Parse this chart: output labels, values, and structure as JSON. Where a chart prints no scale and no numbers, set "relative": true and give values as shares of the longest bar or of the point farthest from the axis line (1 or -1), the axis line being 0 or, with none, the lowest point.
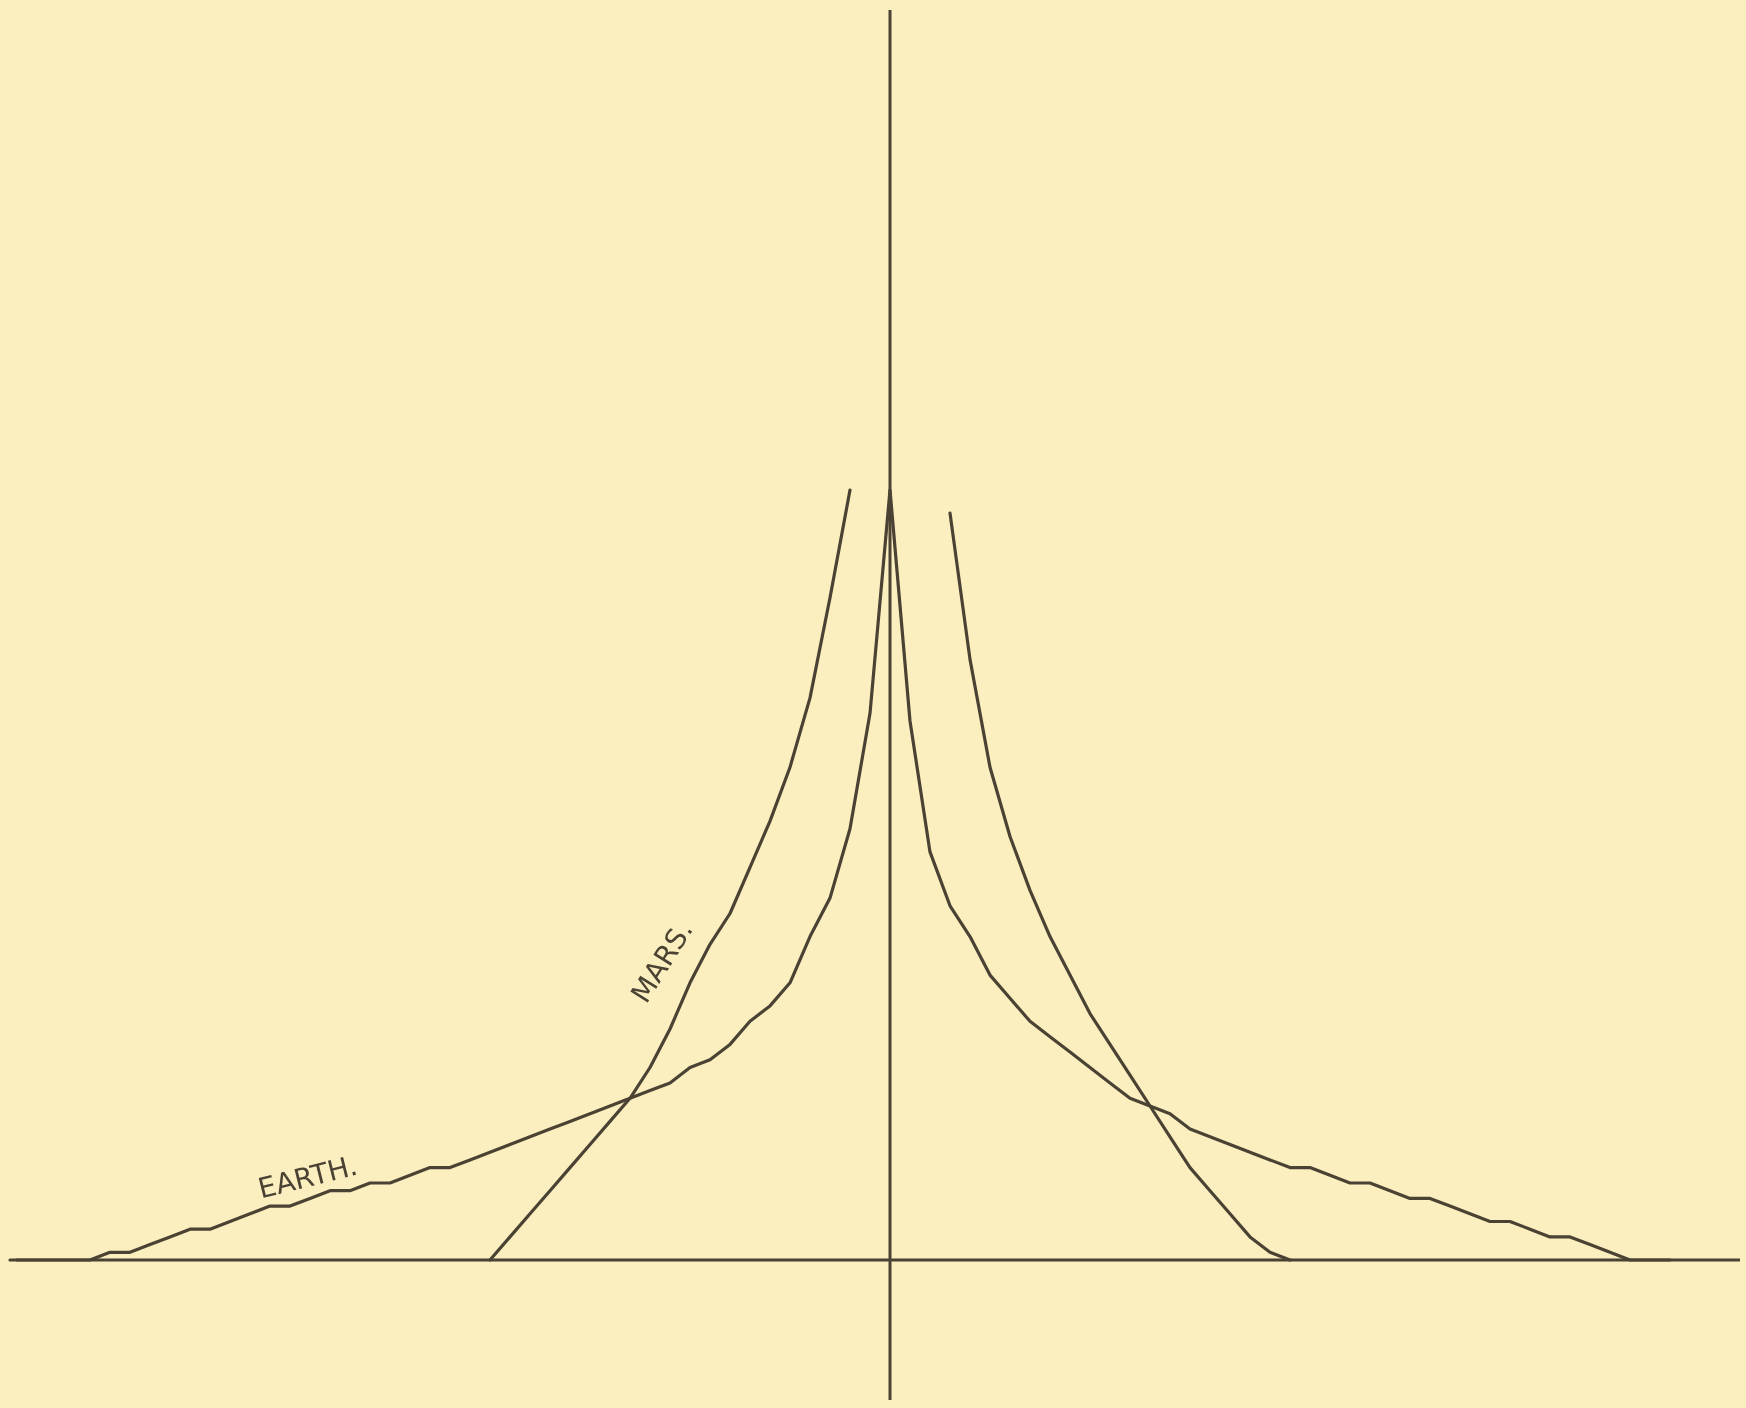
{
  "chart_data": {
    "type": "line",
    "relative": true,
    "categories": [
      null,
      null,
      null,
      null,
      null,
      null,
      null,
      null,
      null,
      null,
      null,
      null,
      null,
      null,
      null,
      null,
      null,
      null,
      null,
      null,
      null,
      null,
      null,
      null,
      null,
      null,
      null,
      null,
      null,
      null,
      null,
      null,
      null,
      null,
      null,
      null,
      null,
      null,
      null,
      null,
      null,
      null,
      null,
      null,
      null,
      null,
      null,
      null,
      null,
      null,
      null,
      null,
      null,
      null,
      null,
      null,
      null,
      null,
      null,
      null,
      null,
      null,
      null,
      null,
      null,
      null,
      null,
      null,
      null,
      null,
      null,
      null,
      null,
      null,
      null,
      null,
      null,
      null,
      null,
      null,
      null,
      null,
      null,
      null,
      null,
      null,
      null
    ],
    "series": [
      {
        "name": "EARTH.",
        "color": "#4a4232",
        "values": [
          0,
          0,
          0,
          0,
          0,
          0.01,
          0.01,
          0.02,
          0.03,
          0.04,
          0.04,
          0.05,
          0.06,
          0.07,
          0.07,
          0.08,
          0.09,
          0.09,
          0.1,
          0.1,
          0.11,
          0.12,
          0.12,
          0.13,
          0.14,
          0.15,
          0.16,
          0.17,
          0.18,
          0.19,
          0.2,
          0.21,
          0.22,
          0.23,
          0.25,
          0.26,
          0.28,
          0.31,
          0.33,
          0.36,
          0.42,
          0.47,
          0.56,
          0.71,
          1,
          0.7,
          0.53,
          0.46,
          0.42,
          0.37,
          0.34,
          0.31,
          0.29,
          0.27,
          0.25,
          0.23,
          0.21,
          0.2,
          0.19,
          0.17,
          0.16,
          0.15,
          0.14,
          0.13,
          0.12,
          0.12,
          0.11,
          0.1,
          0.1,
          0.09,
          0.08,
          0.08,
          0.07,
          0.06,
          0.05,
          0.05,
          0.04,
          0.03,
          0.03,
          0.02,
          0.01,
          0,
          0,
          0,
          null,
          null,
          null
        ]
      },
      {
        "name": "MARS.",
        "color": "#4a4232",
        "values": [
          null,
          null,
          null,
          null,
          null,
          null,
          null,
          null,
          null,
          null,
          null,
          null,
          null,
          null,
          null,
          null,
          null,
          null,
          null,
          null,
          null,
          null,
          null,
          null,
          0,
          0.03,
          0.06,
          0.09,
          0.12,
          0.15,
          0.18,
          0.21,
          0.25,
          0.3,
          0.36,
          0.41,
          0.45,
          0.51,
          0.57,
          0.64,
          0.73,
          0.86,
          1,
          null,
          null,
          null,
          null,
          0.97,
          0.78,
          0.64,
          0.55,
          0.48,
          0.42,
          0.37,
          0.32,
          0.28,
          0.24,
          0.2,
          0.16,
          0.12,
          0.09,
          0.06,
          0.03,
          0.01,
          0,
          null,
          null,
          null,
          null,
          null,
          null,
          null,
          null,
          null,
          null,
          null,
          null,
          null,
          null,
          null,
          null,
          null,
          null,
          null,
          null,
          null,
          null
        ]
      }
    ]
  }
}
